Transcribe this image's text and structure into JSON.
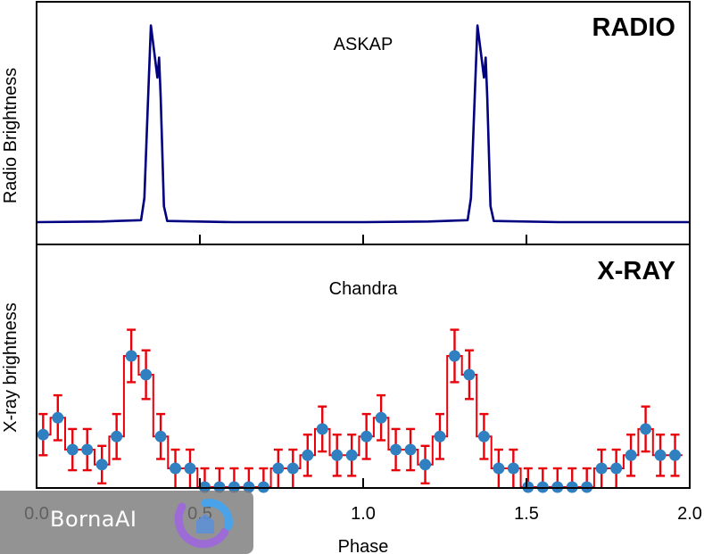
{
  "chart_data": [
    {
      "type": "line",
      "title": "RADIO",
      "annotation": "ASKAP",
      "xlabel": "",
      "ylabel": "Radio Brightness",
      "xlim": [
        0.0,
        2.0
      ],
      "ylim": [
        0,
        1.0
      ],
      "line_color": "#000080",
      "x": [
        0.0,
        0.2,
        0.32,
        0.33,
        0.34,
        0.35,
        0.36,
        0.37,
        0.375,
        0.38,
        0.39,
        0.4,
        0.6,
        1.0,
        1.2,
        1.32,
        1.33,
        1.34,
        1.35,
        1.36,
        1.37,
        1.375,
        1.38,
        1.39,
        1.4,
        1.6,
        2.0
      ],
      "y": [
        0.0,
        0.003,
        0.01,
        0.12,
        0.55,
        0.98,
        0.85,
        0.72,
        0.82,
        0.62,
        0.08,
        0.006,
        0.0,
        0.0,
        0.003,
        0.01,
        0.12,
        0.55,
        0.98,
        0.85,
        0.72,
        0.82,
        0.62,
        0.08,
        0.006,
        0.0,
        0.0
      ]
    },
    {
      "type": "scatter",
      "title": "X-RAY",
      "annotation": "Chandra",
      "xlabel": "Phase",
      "ylabel": "X-ray brightness",
      "xlim": [
        0.0,
        2.0
      ],
      "xticks": [
        "0.0",
        "0.5",
        "1.0",
        "1.5",
        "2.0"
      ],
      "ylim": [
        0,
        1.0
      ],
      "marker_color": "#2f7fc1",
      "error_color": "#e8000b",
      "step": true,
      "x": [
        0.02,
        0.065,
        0.11,
        0.155,
        0.2,
        0.245,
        0.29,
        0.335,
        0.38,
        0.425,
        0.47,
        0.515,
        0.56,
        0.605,
        0.65,
        0.695,
        0.74,
        0.785,
        0.83,
        0.875,
        0.92,
        0.965,
        1.01,
        1.055,
        1.1,
        1.145,
        1.19,
        1.235,
        1.28,
        1.325,
        1.37,
        1.415,
        1.46,
        1.505,
        1.55,
        1.595,
        1.64,
        1.685,
        1.73,
        1.775,
        1.82,
        1.865,
        1.91,
        1.955
      ],
      "y": [
        0.28,
        0.37,
        0.2,
        0.2,
        0.12,
        0.27,
        0.7,
        0.6,
        0.27,
        0.1,
        0.1,
        0.0,
        0.0,
        0.0,
        0.0,
        0.0,
        0.1,
        0.1,
        0.17,
        0.31,
        0.17,
        0.17,
        0.27,
        0.37,
        0.2,
        0.2,
        0.12,
        0.27,
        0.7,
        0.6,
        0.27,
        0.1,
        0.1,
        0.0,
        0.0,
        0.0,
        0.0,
        0.0,
        0.1,
        0.1,
        0.17,
        0.31,
        0.17,
        0.17
      ],
      "yerr": [
        0.11,
        0.12,
        0.11,
        0.11,
        0.1,
        0.12,
        0.14,
        0.13,
        0.12,
        0.1,
        0.1,
        0.1,
        0.1,
        0.1,
        0.1,
        0.1,
        0.1,
        0.1,
        0.11,
        0.12,
        0.11,
        0.11,
        0.12,
        0.12,
        0.11,
        0.11,
        0.1,
        0.12,
        0.14,
        0.13,
        0.12,
        0.1,
        0.1,
        0.1,
        0.1,
        0.1,
        0.1,
        0.1,
        0.1,
        0.1,
        0.11,
        0.12,
        0.11,
        0.11
      ]
    }
  ],
  "watermark": {
    "text": "BornaAI"
  }
}
